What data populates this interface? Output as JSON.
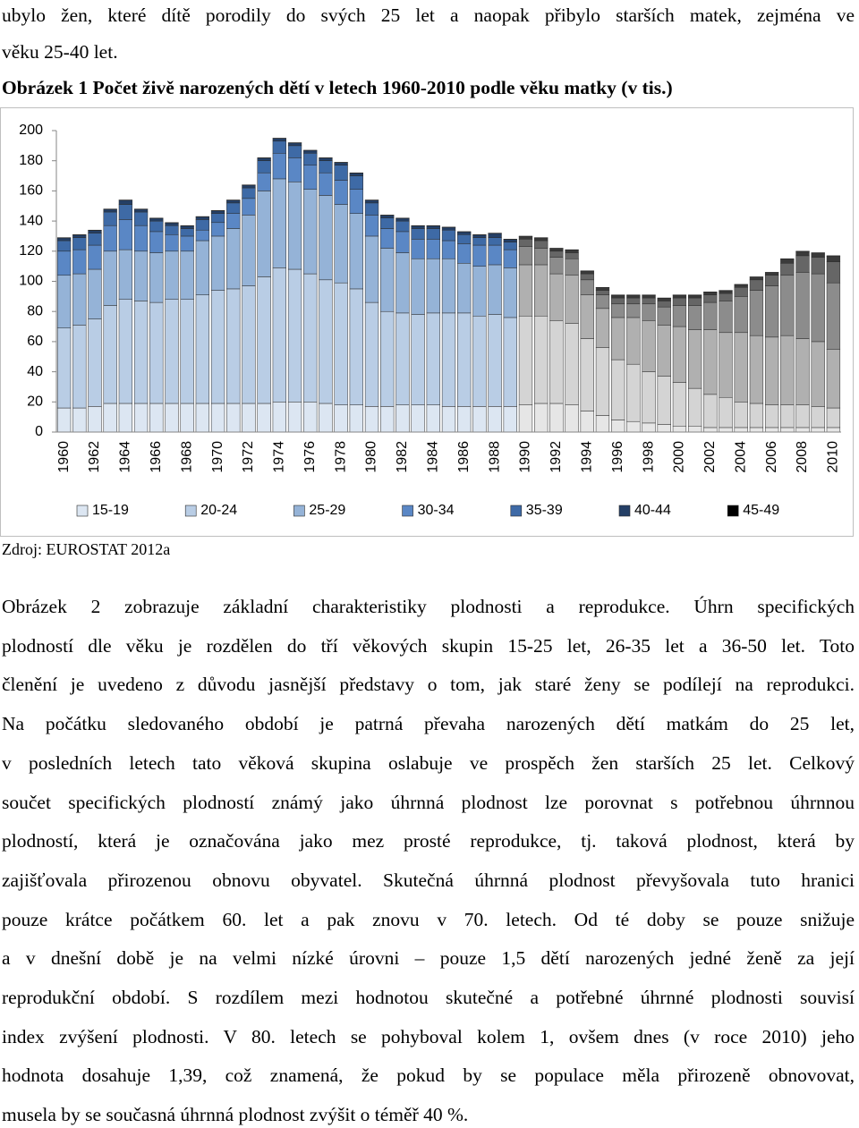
{
  "intro": {
    "lines": [
      "ubylo žen, které dítě porodily do svých 25 let a naopak přibylo starších matek, zejména ve",
      "věku 25-40 let."
    ]
  },
  "caption": "Obrázek 1 Počet živě narozených dětí v letech 1960-2010 podle věku matky (v tis.)",
  "chart_data": {
    "type": "stacked_bar",
    "categories": [
      "1960",
      null,
      "1962",
      null,
      "1964",
      null,
      "1966",
      null,
      "1968",
      null,
      "1970",
      null,
      "1972",
      null,
      "1974",
      null,
      "1976",
      null,
      "1978",
      null,
      "1980",
      null,
      "1982",
      null,
      "1984",
      null,
      "1986",
      null,
      "1988",
      null,
      "1990",
      null,
      "1992",
      null,
      "1994",
      null,
      "1996",
      null,
      "1998",
      null,
      "2000",
      null,
      "2002",
      null,
      "2004",
      null,
      "2006",
      null,
      "2008",
      null,
      "2010"
    ],
    "gray_from": "1990",
    "ylim": [
      0,
      200
    ],
    "yticks": [
      0,
      20,
      40,
      60,
      80,
      100,
      120,
      140,
      160,
      180,
      200
    ],
    "grid": false,
    "legend": "bottom",
    "series": [
      {
        "name": "15-19",
        "color": "#dce6f2",
        "gray": "#e6e6e6",
        "values": [
          16,
          16,
          17,
          19,
          19,
          19,
          19,
          19,
          19,
          19,
          19,
          19,
          19,
          19,
          20,
          20,
          20,
          19,
          18,
          18,
          17,
          17,
          18,
          18,
          18,
          17,
          17,
          17,
          17,
          17,
          18,
          19,
          19,
          18,
          14,
          11,
          8,
          7,
          6,
          5,
          4,
          4,
          3,
          3,
          3,
          3,
          3,
          3,
          3,
          3,
          3
        ]
      },
      {
        "name": "20-24",
        "color": "#b9cde5",
        "gray": "#d4d4d4",
        "values": [
          53,
          55,
          58,
          65,
          69,
          68,
          67,
          69,
          69,
          72,
          75,
          76,
          78,
          84,
          89,
          88,
          85,
          82,
          81,
          77,
          69,
          63,
          61,
          60,
          61,
          62,
          62,
          60,
          61,
          59,
          59,
          58,
          55,
          54,
          48,
          45,
          40,
          38,
          34,
          32,
          29,
          25,
          22,
          20,
          17,
          16,
          15,
          15,
          15,
          14,
          13
        ]
      },
      {
        "name": "25-29",
        "color": "#95b3d7",
        "gray": "#b0b0b0",
        "values": [
          35,
          34,
          33,
          36,
          33,
          33,
          33,
          32,
          32,
          36,
          36,
          40,
          47,
          57,
          59,
          58,
          56,
          56,
          52,
          50,
          44,
          42,
          40,
          37,
          36,
          36,
          33,
          33,
          33,
          33,
          34,
          34,
          31,
          32,
          29,
          26,
          28,
          31,
          34,
          34,
          37,
          39,
          43,
          43,
          46,
          45,
          45,
          46,
          44,
          43,
          39
        ]
      },
      {
        "name": "30-34",
        "color": "#5a87c5",
        "gray": "#8c8c8c",
        "values": [
          16,
          16,
          16,
          17,
          20,
          17,
          14,
          11,
          10,
          7,
          9,
          10,
          11,
          12,
          17,
          16,
          16,
          15,
          16,
          16,
          14,
          13,
          14,
          13,
          13,
          12,
          13,
          14,
          13,
          12,
          12,
          11,
          11,
          11,
          10,
          9,
          9,
          9,
          11,
          12,
          14,
          16,
          18,
          21,
          24,
          30,
          34,
          40,
          44,
          45,
          44
        ]
      },
      {
        "name": "35-39",
        "color": "#3e6aa6",
        "gray": "#666666",
        "values": [
          7,
          8,
          8,
          9,
          10,
          9,
          7,
          6,
          5,
          7,
          6,
          7,
          7,
          8,
          8,
          8,
          8,
          8,
          10,
          9,
          8,
          7,
          7,
          7,
          7,
          7,
          6,
          5,
          5,
          5,
          5,
          5,
          4,
          4,
          4,
          3,
          4,
          4,
          4,
          4,
          5,
          5,
          5,
          5,
          6,
          7,
          7,
          8,
          11,
          11,
          14
        ]
      },
      {
        "name": "40-44",
        "color": "#243f66",
        "gray": "#3a3a3a",
        "values": [
          1.8,
          1.8,
          1.8,
          1.8,
          2.8,
          1.8,
          1.8,
          1.8,
          1.8,
          1.8,
          1.8,
          1.8,
          1.8,
          1.8,
          1.8,
          1.8,
          1.8,
          1.8,
          1.8,
          1.8,
          1.8,
          1.8,
          1.8,
          1.8,
          1.8,
          1.8,
          1.8,
          1.8,
          2.8,
          1.8,
          1.8,
          1.8,
          1.8,
          1.8,
          1.8,
          1.8,
          1.8,
          1.8,
          1.8,
          1.8,
          1.8,
          1.8,
          1.8,
          1.8,
          1.8,
          1.8,
          1.8,
          2.8,
          2.8,
          2.8,
          3.8
        ]
      },
      {
        "name": "45-49",
        "color": "#000000",
        "gray": "#000000",
        "values": [
          0.2,
          0.2,
          0.2,
          0.2,
          0.2,
          0.2,
          0.2,
          0.2,
          0.2,
          0.2,
          0.2,
          0.2,
          0.2,
          0.2,
          0.2,
          0.2,
          0.2,
          0.2,
          0.2,
          0.2,
          0.2,
          0.2,
          0.2,
          0.2,
          0.2,
          0.2,
          0.2,
          0.2,
          0.2,
          0.2,
          0.2,
          0.2,
          0.2,
          0.2,
          0.2,
          0.2,
          0.2,
          0.2,
          0.2,
          0.2,
          0.2,
          0.2,
          0.2,
          0.2,
          0.2,
          0.2,
          0.2,
          0.2,
          0.2,
          0.2,
          0.2
        ]
      }
    ]
  },
  "source": "Zdroj: EUROSTAT 2012a",
  "paragraph": {
    "lines": [
      "Obrázek 2 zobrazuje základní charakteristiky plodnosti a reprodukce. Úhrn specifických",
      "plodností dle věku je rozdělen do tří věkových skupin 15-25 let, 26-35 let a 36-50 let. Toto",
      "členění je uvedeno z důvodu jasnější představy o tom, jak staré ženy se podílejí na reprodukci.",
      "Na počátku sledovaného období je patrná převaha narozených dětí matkám do 25 let,",
      "v posledních letech tato věková skupina oslabuje ve prospěch žen starších 25 let. Celkový",
      "součet specifických plodností známý jako úhrnná plodnost lze porovnat s potřebnou úhrnnou",
      "plodností, která je označována jako mez prosté reprodukce, tj. taková plodnost, která by",
      "zajišťovala přirozenou obnovu obyvatel. Skutečná úhrnná plodnost převyšovala tuto hranici",
      "pouze krátce počátkem 60. let a pak znovu v 70. letech. Od té doby se pouze snižuje",
      "a v dnešní době je na velmi nízké úrovni – pouze 1,5 dětí narozených jedné ženě za její",
      "reprodukční období. S rozdílem mezi hodnotou skutečné a potřebné úhrnné plodnosti souvisí",
      "index zvýšení plodnosti. V 80. letech se pohyboval kolem 1, ovšem dnes (v roce 2010) jeho",
      "hodnota dosahuje 1,39, což znamená, že pokud by se populace měla přirozeně obnovovat,",
      "musela by se současná úhrnná plodnost zvýšit o téměř 40 %."
    ]
  }
}
